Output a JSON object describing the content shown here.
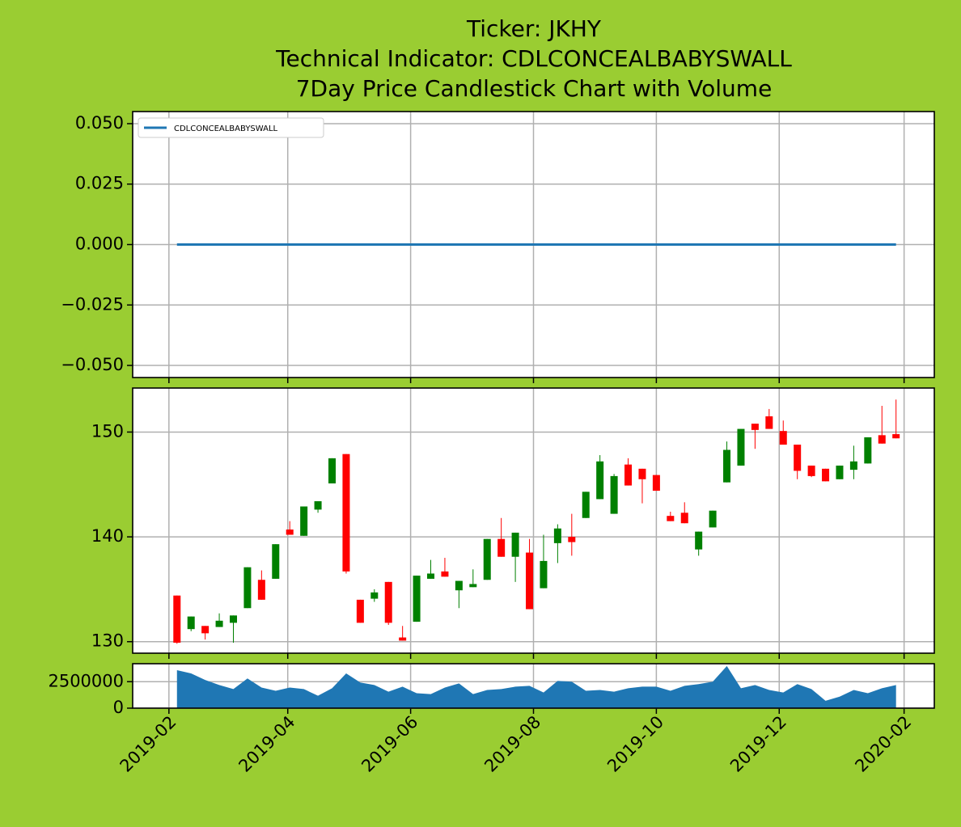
{
  "chart_data": [
    {
      "type": "line",
      "title": [
        "Ticker: JKHY",
        "Technical Indicator: CDLCONCEALBABYSWALL",
        "7Day Price Candlestick Chart with Volume"
      ],
      "x": [
        "2019-02-05",
        "2019-02-12",
        "2019-02-19",
        "2019-02-26",
        "2019-03-05",
        "2019-03-12",
        "2019-03-19",
        "2019-03-26",
        "2019-04-02",
        "2019-04-09",
        "2019-04-16",
        "2019-04-23",
        "2019-04-30",
        "2019-05-07",
        "2019-05-14",
        "2019-05-21",
        "2019-05-28",
        "2019-06-04",
        "2019-06-11",
        "2019-06-18",
        "2019-06-25",
        "2019-07-02",
        "2019-07-09",
        "2019-07-16",
        "2019-07-23",
        "2019-07-30",
        "2019-08-06",
        "2019-08-13",
        "2019-08-20",
        "2019-08-27",
        "2019-09-03",
        "2019-09-10",
        "2019-09-17",
        "2019-09-24",
        "2019-10-01",
        "2019-10-08",
        "2019-10-15",
        "2019-10-22",
        "2019-10-29",
        "2019-11-05",
        "2019-11-12",
        "2019-11-19",
        "2019-11-26",
        "2019-12-03",
        "2019-12-10",
        "2019-12-17",
        "2019-12-24",
        "2019-12-31",
        "2020-01-07",
        "2020-01-14",
        "2020-01-21",
        "2020-01-28"
      ],
      "series": [
        {
          "name": "CDLCONCEALBABYSWALL",
          "color": "#1f77b4",
          "values": [
            0,
            0,
            0,
            0,
            0,
            0,
            0,
            0,
            0,
            0,
            0,
            0,
            0,
            0,
            0,
            0,
            0,
            0,
            0,
            0,
            0,
            0,
            0,
            0,
            0,
            0,
            0,
            0,
            0,
            0,
            0,
            0,
            0,
            0,
            0,
            0,
            0,
            0,
            0,
            0,
            0,
            0,
            0,
            0,
            0,
            0,
            0,
            0,
            0,
            0,
            0,
            0
          ]
        }
      ],
      "ylim": [
        -0.055,
        0.055
      ],
      "yticks": [
        {
          "value": -0.05,
          "label": "−0.050"
        },
        {
          "value": -0.025,
          "label": "−0.025"
        },
        {
          "value": 0,
          "label": "0.000"
        },
        {
          "value": 0.025,
          "label": "0.025"
        },
        {
          "value": 0.05,
          "label": "0.050"
        }
      ],
      "grid": true,
      "legend": "upper left"
    },
    {
      "type": "candlestick",
      "x": [
        "2019-02-05",
        "2019-02-12",
        "2019-02-19",
        "2019-02-26",
        "2019-03-05",
        "2019-03-12",
        "2019-03-19",
        "2019-03-26",
        "2019-04-02",
        "2019-04-09",
        "2019-04-16",
        "2019-04-23",
        "2019-04-30",
        "2019-05-07",
        "2019-05-14",
        "2019-05-21",
        "2019-05-28",
        "2019-06-04",
        "2019-06-11",
        "2019-06-18",
        "2019-06-25",
        "2019-07-02",
        "2019-07-09",
        "2019-07-16",
        "2019-07-23",
        "2019-07-30",
        "2019-08-06",
        "2019-08-13",
        "2019-08-20",
        "2019-08-27",
        "2019-09-03",
        "2019-09-10",
        "2019-09-17",
        "2019-09-24",
        "2019-10-01",
        "2019-10-08",
        "2019-10-15",
        "2019-10-22",
        "2019-10-29",
        "2019-11-05",
        "2019-11-12",
        "2019-11-19",
        "2019-11-26",
        "2019-12-03",
        "2019-12-10",
        "2019-12-17",
        "2019-12-24",
        "2019-12-31",
        "2020-01-07",
        "2020-01-14",
        "2020-01-21",
        "2020-01-28"
      ],
      "open": [
        134.4,
        131.2,
        131.5,
        131.4,
        131.8,
        133.2,
        135.9,
        136.0,
        140.7,
        140.1,
        142.6,
        145.1,
        147.9,
        134.0,
        134.1,
        135.7,
        130.4,
        131.9,
        136.0,
        136.7,
        134.9,
        135.2,
        135.9,
        139.8,
        138.1,
        138.5,
        135.1,
        139.4,
        140.0,
        141.8,
        143.6,
        142.2,
        146.9,
        146.5,
        145.9,
        142.0,
        142.3,
        138.8,
        140.9,
        145.2,
        146.8,
        150.8,
        151.5,
        150.1,
        148.8,
        146.8,
        146.5,
        145.5,
        146.4,
        147.0,
        149.7,
        149.8
      ],
      "high": [
        134.4,
        132.4,
        131.5,
        132.7,
        132.5,
        137.1,
        136.8,
        139.3,
        141.5,
        142.9,
        143.4,
        147.5,
        147.9,
        134.0,
        135.0,
        135.7,
        131.5,
        136.3,
        137.8,
        138.0,
        135.8,
        136.9,
        139.8,
        141.8,
        140.4,
        139.8,
        140.2,
        141.2,
        142.2,
        144.3,
        147.8,
        146.0,
        147.5,
        146.5,
        145.9,
        142.4,
        143.3,
        140.5,
        142.5,
        149.1,
        150.3,
        150.8,
        152.2,
        151.1,
        148.8,
        146.8,
        146.5,
        146.8,
        148.7,
        149.5,
        152.5,
        153.1
      ],
      "low": [
        129.8,
        131.0,
        130.2,
        131.4,
        129.9,
        133.2,
        134.0,
        136.0,
        140.2,
        140.1,
        142.3,
        145.1,
        136.5,
        131.8,
        133.8,
        131.6,
        130.1,
        131.9,
        136.0,
        136.2,
        133.2,
        135.2,
        135.9,
        138.1,
        135.7,
        133.1,
        135.1,
        137.5,
        138.2,
        141.8,
        143.6,
        142.2,
        144.9,
        143.2,
        144.4,
        141.5,
        141.3,
        138.2,
        140.9,
        145.2,
        146.8,
        148.4,
        150.3,
        148.8,
        145.5,
        145.7,
        145.3,
        145.5,
        145.5,
        147.0,
        148.9,
        149.4
      ],
      "close": [
        129.9,
        132.4,
        130.8,
        132.0,
        132.5,
        137.1,
        134.0,
        139.3,
        140.2,
        142.9,
        143.4,
        147.5,
        136.7,
        131.8,
        134.7,
        131.8,
        130.1,
        136.3,
        136.5,
        136.2,
        135.8,
        135.5,
        139.8,
        138.1,
        140.4,
        133.1,
        137.7,
        140.8,
        139.5,
        144.3,
        147.2,
        145.8,
        144.9,
        145.5,
        144.4,
        141.5,
        141.3,
        140.5,
        142.5,
        148.3,
        150.3,
        150.2,
        150.3,
        148.8,
        146.3,
        145.8,
        145.3,
        146.8,
        147.2,
        149.5,
        148.9,
        149.4
      ],
      "up_color": "#008000",
      "down_color": "#ff0000",
      "ylim": [
        128.9,
        154.2
      ],
      "yticks": [
        130,
        140,
        150
      ],
      "grid": true
    },
    {
      "type": "area",
      "x": [
        "2019-02-05",
        "2019-02-12",
        "2019-02-19",
        "2019-02-26",
        "2019-03-05",
        "2019-03-12",
        "2019-03-19",
        "2019-03-26",
        "2019-04-02",
        "2019-04-09",
        "2019-04-16",
        "2019-04-23",
        "2019-04-30",
        "2019-05-07",
        "2019-05-14",
        "2019-05-21",
        "2019-05-28",
        "2019-06-04",
        "2019-06-11",
        "2019-06-18",
        "2019-06-25",
        "2019-07-02",
        "2019-07-09",
        "2019-07-16",
        "2019-07-23",
        "2019-07-30",
        "2019-08-06",
        "2019-08-13",
        "2019-08-20",
        "2019-08-27",
        "2019-09-03",
        "2019-09-10",
        "2019-09-17",
        "2019-09-24",
        "2019-10-01",
        "2019-10-08",
        "2019-10-15",
        "2019-10-22",
        "2019-10-29",
        "2019-11-05",
        "2019-11-12",
        "2019-11-19",
        "2019-11-26",
        "2019-12-03",
        "2019-12-10",
        "2019-12-17",
        "2019-12-24",
        "2019-12-31",
        "2020-01-07",
        "2020-01-14",
        "2020-01-21",
        "2020-01-28"
      ],
      "series": [
        {
          "color": "#1f77b4",
          "values": [
            3590000,
            3280000,
            2660000,
            2190000,
            1800000,
            2810000,
            1950000,
            1640000,
            1950000,
            1800000,
            1170000,
            1880000,
            3280000,
            2420000,
            2190000,
            1560000,
            2030000,
            1410000,
            1330000,
            1950000,
            2340000,
            1330000,
            1720000,
            1800000,
            2030000,
            2110000,
            1480000,
            2580000,
            2500000,
            1640000,
            1720000,
            1560000,
            1880000,
            2030000,
            2030000,
            1640000,
            2110000,
            2270000,
            2500000,
            3980000,
            1880000,
            2190000,
            1720000,
            1480000,
            2270000,
            1800000,
            700000,
            1090000,
            1720000,
            1410000,
            1880000,
            2190000
          ]
        }
      ],
      "ylim": [
        0,
        4200000
      ],
      "yticks": [
        0,
        2500000
      ],
      "grid": true,
      "xlim": [
        "2019-01-14",
        "2020-02-16"
      ],
      "xticks": [
        "2019-02",
        "2019-04",
        "2019-06",
        "2019-08",
        "2019-10",
        "2019-12",
        "2020-02"
      ]
    }
  ]
}
